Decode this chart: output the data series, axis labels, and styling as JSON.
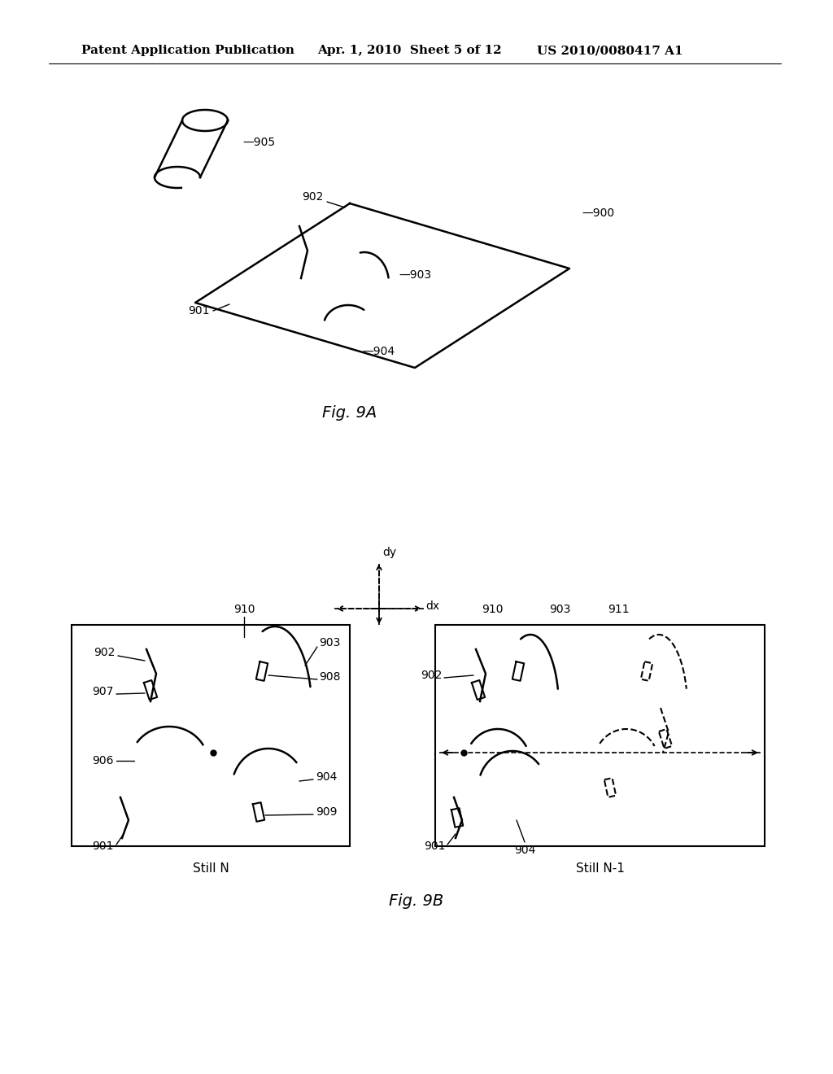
{
  "bg_color": "#ffffff",
  "header_left": "Patent Application Publication",
  "header_mid": "Apr. 1, 2010  Sheet 5 of 12",
  "header_right": "US 2010/0080417 A1",
  "fig9a_label": "Fig. 9A",
  "fig9b_label": "Fig. 9B",
  "still_n_label": "Still N",
  "still_n1_label": "Still N-1"
}
